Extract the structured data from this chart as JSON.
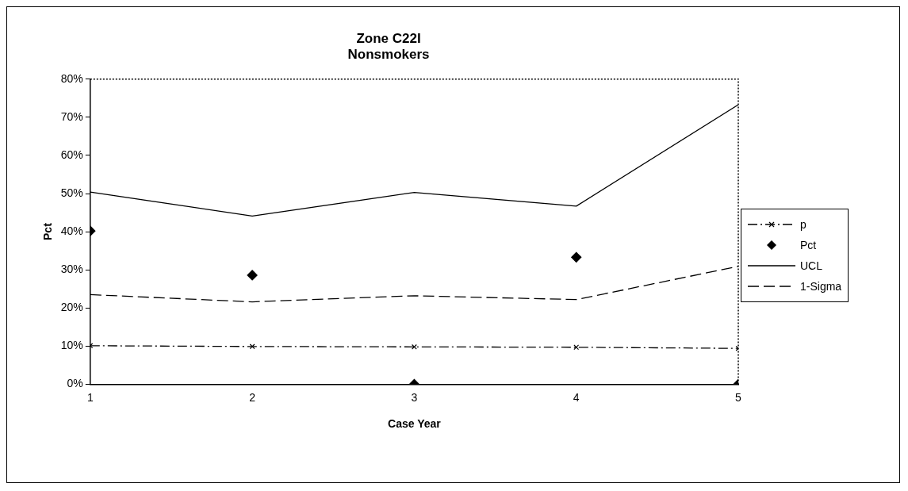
{
  "chart_data": {
    "type": "line",
    "title": "Zone C22I\nNonsmokers",
    "xlabel": "Case Year",
    "ylabel": "Pct",
    "x": [
      1,
      2,
      3,
      4,
      5
    ],
    "series": [
      {
        "name": "p",
        "color": "#000000",
        "type": "line",
        "line_style": "dashdot",
        "marker": "cross",
        "values": [
          10.1,
          9.9,
          9.8,
          9.7,
          9.4
        ]
      },
      {
        "name": "Pct",
        "color": "#000000",
        "type": "scatter",
        "marker": "diamond",
        "values": [
          40.2,
          28.6,
          0,
          33.3,
          0
        ]
      },
      {
        "name": "UCL",
        "color": "#000000",
        "type": "line",
        "line_style": "solid",
        "marker": "none",
        "values": [
          50.4,
          44.1,
          50.3,
          46.7,
          73.3
        ]
      },
      {
        "name": "1-Sigma",
        "color": "#000000",
        "type": "line",
        "line_style": "dashed",
        "marker": "none",
        "values": [
          23.5,
          21.6,
          23.2,
          22.2,
          30.9
        ]
      }
    ],
    "xlim": [
      1,
      5
    ],
    "xticks": [
      1,
      2,
      3,
      4,
      5
    ],
    "ylim": [
      0,
      80
    ],
    "yticks": [
      {
        "value": 0,
        "label": "0%"
      },
      {
        "value": 10,
        "label": "10%"
      },
      {
        "value": 20,
        "label": "20%"
      },
      {
        "value": 30,
        "label": "30%"
      },
      {
        "value": 40,
        "label": "40%"
      },
      {
        "value": 50,
        "label": "50%"
      },
      {
        "value": 60,
        "label": "60%"
      },
      {
        "value": 70,
        "label": "70%"
      },
      {
        "value": 80,
        "label": "80%"
      }
    ],
    "grid": false,
    "legend": "right"
  }
}
